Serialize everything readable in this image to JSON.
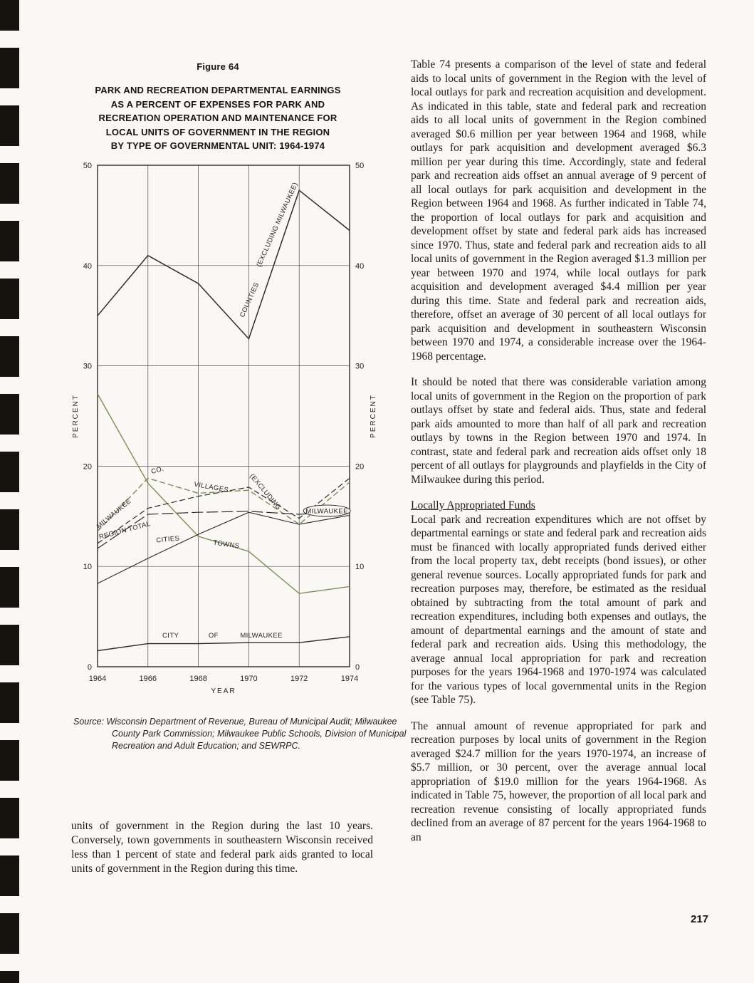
{
  "page": {
    "number": "217"
  },
  "figure": {
    "label": "Figure 64",
    "title_lines": [
      "PARK AND RECREATION DEPARTMENTAL EARNINGS",
      "AS A PERCENT OF EXPENSES FOR PARK AND",
      "RECREATION OPERATION AND MAINTENANCE FOR",
      "LOCAL UNITS OF GOVERNMENT IN THE REGION",
      "BY TYPE OF GOVERNMENTAL UNIT: 1964-1974"
    ],
    "source_note": "Source: Wisconsin Department of Revenue, Bureau of Municipal Audit; Milwaukee County Park Commission; Milwaukee Public Schools, Division of Municipal Recreation and Adult Education; and SEWRPC."
  },
  "chart_data": {
    "type": "line",
    "title": "Park and Recreation Departmental Earnings as a Percent of Expenses for Park and Recreation Operation and Maintenance for Local Units of Government in the Region by Type of Governmental Unit: 1964-1974",
    "x": [
      1964,
      1966,
      1968,
      1970,
      1972,
      1974
    ],
    "xticks": [
      "1964",
      "1966",
      "1968",
      "1970",
      "1972",
      "1974"
    ],
    "yticks": [
      0,
      10,
      20,
      30,
      40,
      50
    ],
    "ylim": [
      0,
      50
    ],
    "xlabel": "YEAR",
    "ylabel": "PERCENT",
    "grid": true,
    "colors": {
      "black_line": "#2b2b2b",
      "green_line": "#7d8c57"
    },
    "series": [
      {
        "name": "Counties (excluding Milwaukee)",
        "color": "#2b2b2b",
        "dash": "",
        "width": 1.5,
        "values": [
          35,
          41,
          38.2,
          32.7,
          47.5,
          43.5
        ]
      },
      {
        "name": "Towns",
        "color": "#7d8c57",
        "dash": "",
        "width": 1.4,
        "values": [
          27.2,
          18.3,
          13,
          11.5,
          7.3,
          8
        ]
      },
      {
        "name": "Milwaukee Co.",
        "color": "#7d8c57",
        "dash": "8 4",
        "width": 1.4,
        "values": [
          13.5,
          18.8,
          17.3,
          17.6,
          14.2,
          18.4
        ]
      },
      {
        "name": "Villages",
        "color": "#2b2b2b",
        "dash": "8 4",
        "width": 1.2,
        "values": [
          12.3,
          15.8,
          17.0,
          17.9,
          14.8,
          18.8
        ]
      },
      {
        "name": "Region Total",
        "color": "#2b2b2b",
        "dash": "16 5",
        "width": 1.2,
        "values": [
          11.8,
          15.2,
          15.4,
          15.5,
          15.2,
          15.5
        ]
      },
      {
        "name": "Cities (excluding Milwaukee)",
        "color": "#2b2b2b",
        "dash": "",
        "width": 1.1,
        "values": [
          8.3,
          10.8,
          13.2,
          15.4,
          14.2,
          15.1
        ]
      },
      {
        "name": "City of Milwaukee",
        "color": "#2b2b2b",
        "dash": "",
        "width": 1.4,
        "values": [
          1.6,
          2.3,
          2.3,
          2.4,
          2.4,
          3.0
        ]
      }
    ],
    "annotations": [
      {
        "text": "(EXCLUDING MILWAUKEE)",
        "x": 1971.2,
        "y": 44.0,
        "rot": -66
      },
      {
        "text": "COUNTIES",
        "x": 1970.1,
        "y": 36.5,
        "rot": -66
      },
      {
        "text": "CO.",
        "x": 1966.4,
        "y": 19.4,
        "rot": -15
      },
      {
        "text": "MILWAUKEE",
        "x": 1964.7,
        "y": 15.1,
        "rot": -40
      },
      {
        "text": "REGION TOTAL",
        "x": 1965.1,
        "y": 13.4,
        "rot": -15
      },
      {
        "text": "VILLAGES",
        "x": 1968.5,
        "y": 17.7,
        "rot": 10
      },
      {
        "text": "(EXCLUDING",
        "x": 1970.6,
        "y": 17.3,
        "rot": 50
      },
      {
        "text": "MILWAUKEE",
        "x": 1973.1,
        "y": 15.3,
        "rot": 0,
        "oval": true
      },
      {
        "text": "CITIES",
        "x": 1966.8,
        "y": 12.5,
        "rot": -5
      },
      {
        "text": "TOWNS",
        "x": 1969.1,
        "y": 12.0,
        "rot": 8
      },
      {
        "text": "CITY",
        "x": 1966.9,
        "y": 2.9,
        "rot": 0
      },
      {
        "text": "OF",
        "x": 1968.6,
        "y": 2.9,
        "rot": 0
      },
      {
        "text": "MILWAUKEE",
        "x": 1970.5,
        "y": 2.9,
        "rot": 0
      }
    ]
  },
  "left_column": {
    "continuation_paragraph": "units of government in the Region during the last 10 years. Conversely, town governments in southeastern Wisconsin received less than 1 percent of state and federal park aids granted to local units of government in the Region during this time."
  },
  "right_column": {
    "blocks": [
      {
        "type": "paragraph",
        "text": "Table 74 presents a comparison of the level of state and federal aids to local units of government in the Region with the level of local outlays for park and recreation acquisition and development. As indicated in this table, state and federal park and recreation aids to all local units of government in the Region combined averaged $0.6 million per year between 1964 and 1968, while outlays for park acquisition and development averaged $6.3 million per year during this time. Accordingly, state and federal park and recreation aids offset an annual average of 9 percent of all local outlays for park acquisition and development in the Region between 1964 and 1968. As further indicated in Table 74, the proportion of local outlays for park and acquisition and development offset by state and federal park aids has increased since 1970. Thus, state and federal park and recreation aids to all local units of government in the Region averaged $1.3 million per year between 1970 and 1974, while local outlays for park acquisition and development averaged $4.4 million per year during this time. State and federal park and recreation aids, therefore, offset an average of 30 percent of all local outlays for park acquisition and development in southeastern Wisconsin between 1970 and 1974, a considerable increase over the 1964-1968 percentage."
      },
      {
        "type": "paragraph",
        "text": "It should be noted that there was considerable variation among local units of government in the Region on the proportion of park outlays offset by state and federal aids. Thus, state and federal park aids amounted to more than half of all park and recreation outlays by towns in the Region between 1970 and 1974. In contrast, state and federal park and recreation aids offset only 18 percent of all outlays for playgrounds and playfields in the City of Milwaukee during this period."
      },
      {
        "type": "heading",
        "text": "Locally Appropriated Funds"
      },
      {
        "type": "paragraph",
        "text": "Local park and recreation expenditures which are not offset by departmental earnings or state and federal park and recreation aids must be financed with locally appropriated funds derived either from the local property tax, debt receipts (bond issues), or other general revenue sources. Locally appropriated funds for park and recreation purposes may, therefore, be estimated as the residual obtained by subtracting from the total amount of park and recreation expenditures, including both expenses and outlays, the amount of departmental earnings and the amount of state and federal park and recreation aids. Using this methodology, the average annual local appropriation for park and recreation purposes for the years 1964-1968 and 1970-1974 was calculated for the various types of local governmental units in the Region (see Table 75)."
      },
      {
        "type": "paragraph",
        "text": "The annual amount of revenue appropriated for park and recreation purposes by local units of government in the Region averaged $24.7 million for the years 1970-1974, an increase of $5.7 million, or 30 percent, over the average annual local appropriation of $19.0 million for the years 1964-1968. As indicated in Table 75, however, the proportion of all local park and recreation revenue consisting of locally appropriated funds declined from an average of 87 percent for the years 1964-1968 to an"
      }
    ]
  }
}
